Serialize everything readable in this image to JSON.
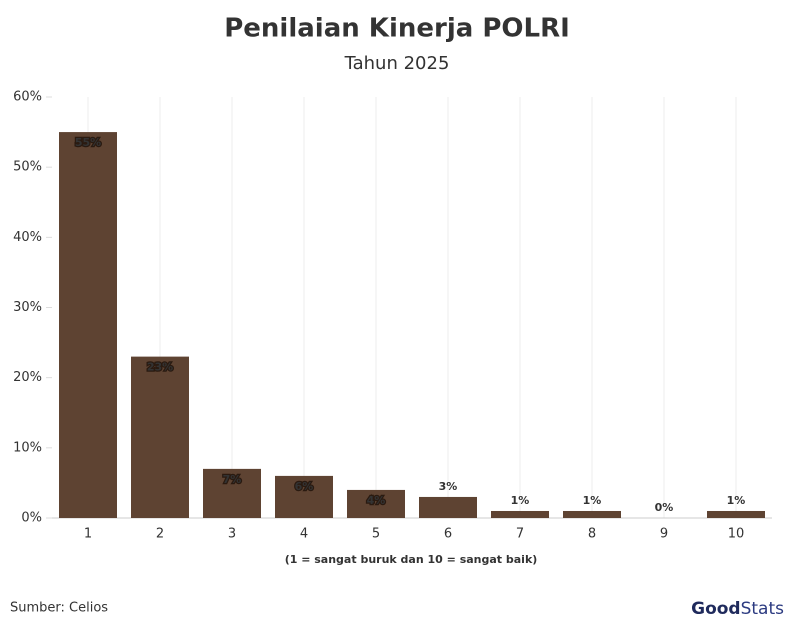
{
  "chart_data": {
    "type": "bar",
    "title": "Penilaian Kinerja POLRI",
    "subtitle": "Tahun 2025",
    "x_label": "(1 = sangat buruk dan 10 = sangat baik)",
    "categories": [
      "1",
      "2",
      "3",
      "4",
      "5",
      "6",
      "7",
      "8",
      "9",
      "10"
    ],
    "values": [
      55,
      23,
      7,
      6,
      4,
      3,
      1,
      1,
      0,
      1
    ],
    "value_labels": [
      "55%",
      "23%",
      "7%",
      "6%",
      "4%",
      "3%",
      "1%",
      "1%",
      "0%",
      "1%"
    ],
    "color": "#5e4332",
    "ylim": [
      0,
      60
    ],
    "yticks": [
      {
        "value": 0,
        "label": "0%"
      },
      {
        "value": 10,
        "label": "10%"
      },
      {
        "value": 20,
        "label": "20%"
      },
      {
        "value": 30,
        "label": "30%"
      },
      {
        "value": 40,
        "label": "40%"
      },
      {
        "value": 50,
        "label": "50%"
      },
      {
        "value": 60,
        "label": "60%"
      }
    ],
    "grid": "x",
    "source": "Sumber: Celios",
    "logo": [
      "Good",
      "Stats"
    ]
  }
}
